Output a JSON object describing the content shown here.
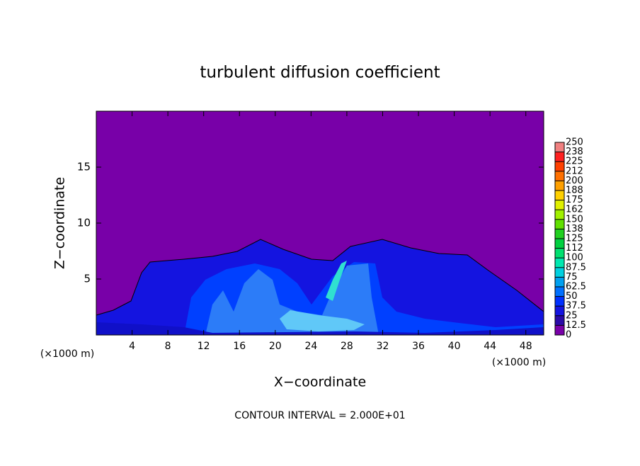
{
  "chart_data": {
    "type": "contour",
    "title": "turbulent diffusion coefficient",
    "x_label": "X−coordinate",
    "y_label": "Z−coordinate",
    "x_unit": "(×1000 m)",
    "y_unit": "(×1000 m)",
    "footnote": "CONTOUR INTERVAL = 2.000E+01",
    "xlim": [
      0,
      50
    ],
    "xticks": [
      4,
      8,
      12,
      16,
      20,
      24,
      28,
      32,
      36,
      40,
      44,
      48
    ],
    "ylim": [
      0,
      20
    ],
    "yticks": [
      5,
      10,
      15
    ],
    "colorbar": {
      "levels": [
        0,
        12.5,
        25,
        37.5,
        50,
        62.5,
        75,
        87.5,
        100,
        {
          "value": 112.5,
          "label": "112"
        },
        125,
        {
          "value": 137.5,
          "label": "138"
        },
        150,
        {
          "value": 162.5,
          "label": "162"
        },
        175,
        {
          "value": 187.5,
          "label": "188"
        },
        200,
        {
          "value": 212.5,
          "label": "212"
        },
        225,
        {
          "value": 237.5,
          "label": "238"
        },
        250
      ],
      "colors": [
        "#7800a8",
        "#2a0aa8",
        "#1414e0",
        "#0030ff",
        "#0070ff",
        "#00a0f0",
        "#00d0e0",
        "#00e8b0",
        "#00e070",
        "#00d040",
        "#20d020",
        "#60e000",
        "#a0f000",
        "#e0f000",
        "#ffd000",
        "#ffa000",
        "#ff7000",
        "#ff4000",
        "#ff2020",
        "#f08080"
      ]
    }
  }
}
